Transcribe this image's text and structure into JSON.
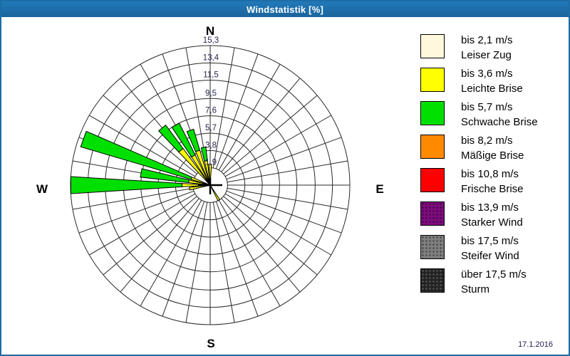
{
  "window": {
    "title": "Windstatistik [%]"
  },
  "footer": {
    "date": "17.1.2016"
  },
  "colors": {
    "title_bar": "#1c6da6",
    "page_border": "#1c6da6",
    "grid": "#2a2a2a",
    "ring_label_text": "#26264f",
    "compass_text": "#000000",
    "hub_cross": "#000000"
  },
  "legend": {
    "items": [
      {
        "speed": "bis 2,1 m/s",
        "name": "Leiser Zug",
        "color": "#fff8dc",
        "dot_style": null
      },
      {
        "speed": "bis 3,6 m/s",
        "name": "Leichte Brise",
        "color": "#ffff00",
        "dot_style": null
      },
      {
        "speed": "bis 5,7 m/s",
        "name": "Schwache Brise",
        "color": "#00e000",
        "dot_style": null
      },
      {
        "speed": "bis 8,2 m/s",
        "name": "Mäßige Brise",
        "color": "#ff8a00",
        "dot_style": null
      },
      {
        "speed": "bis 10,8 m/s",
        "name": "Frische Brise",
        "color": "#ff0000",
        "dot_style": null
      },
      {
        "speed": "bis 13,9 m/s",
        "name": "Starker Wind",
        "color": "#7d0c7d",
        "dot_style": "dark"
      },
      {
        "speed": "bis 17,5 m/s",
        "name": "Steifer Wind",
        "color": "#7f7f7f",
        "dot_style": "dark"
      },
      {
        "speed": "über 17,5 m/s",
        "name": "Sturm",
        "color": "#232323",
        "dot_style": "light"
      }
    ]
  },
  "chart_data": {
    "type": "windrose",
    "title": "Windstatistik [%]",
    "unit": "%",
    "sector_count": 36,
    "sector_step_deg": 10,
    "max_value": 15.3,
    "ring_values": [
      1.9,
      3.8,
      5.7,
      7.6,
      9.5,
      11.5,
      13.4,
      15.3
    ],
    "ring_labels": [
      "1,9",
      "3,8",
      "5,7",
      "7,6",
      "9,5",
      "11,5",
      "13,4",
      "15,3"
    ],
    "compass_labels": {
      "n": "N",
      "e": "E",
      "s": "S",
      "w": "W"
    },
    "series": [
      {
        "name": "bis 2,1 m/s Leiser Zug",
        "color": "#fff8dc"
      },
      {
        "name": "bis 3,6 m/s Leichte Brise",
        "color": "#ffff00"
      },
      {
        "name": "bis 5,7 m/s Schwache Brise",
        "color": "#00e000"
      }
    ],
    "bars": [
      {
        "direction_deg": 0,
        "segments": [
          0.4,
          1.9,
          0.0
        ],
        "total": 2.3
      },
      {
        "direction_deg": 150,
        "segments": [
          0.3,
          1.6,
          0.0
        ],
        "total": 1.9
      },
      {
        "direction_deg": 260,
        "segments": [
          0.3,
          2.0,
          0.0
        ],
        "total": 2.3
      },
      {
        "direction_deg": 270,
        "segments": [
          0.5,
          2.6,
          12.2
        ],
        "total": 15.3
      },
      {
        "direction_deg": 280,
        "segments": [
          0.4,
          2.0,
          5.3
        ],
        "total": 7.7
      },
      {
        "direction_deg": 290,
        "segments": [
          0.4,
          1.8,
          12.6
        ],
        "total": 14.8
      },
      {
        "direction_deg": 320,
        "segments": [
          0.5,
          4.5,
          3.2
        ],
        "total": 8.2
      },
      {
        "direction_deg": 330,
        "segments": [
          0.4,
          3.3,
          3.9
        ],
        "total": 7.6
      },
      {
        "direction_deg": 340,
        "segments": [
          0.4,
          3.6,
          2.4
        ],
        "total": 6.4
      },
      {
        "direction_deg": 350,
        "segments": [
          0.4,
          2.3,
          1.5
        ],
        "total": 4.2
      }
    ]
  }
}
